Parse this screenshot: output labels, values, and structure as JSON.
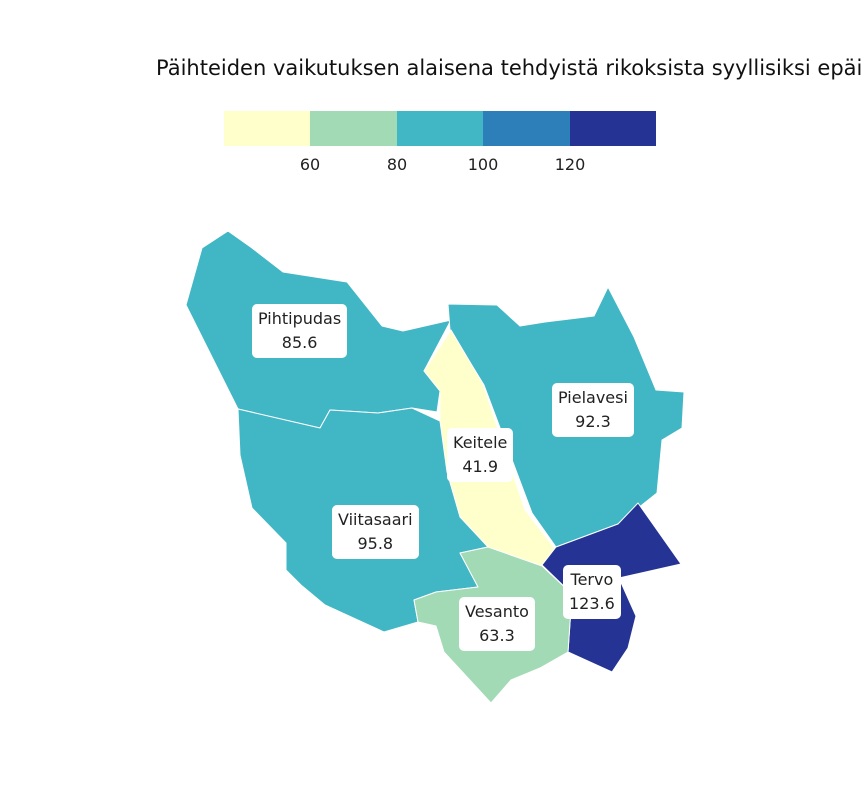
{
  "title": "Päihteiden vaikutuksen alaisena tehdyistä rikoksista syyllisiksi epäilly",
  "legend": {
    "colors": [
      "#ffffcc",
      "#a1dab4",
      "#41b6c4",
      "#2c7fb8",
      "#253494"
    ],
    "breaks": [
      {
        "value": "60"
      },
      {
        "value": "80"
      },
      {
        "value": "100"
      },
      {
        "value": "120"
      }
    ]
  },
  "regions": [
    {
      "name": "Pihtipudas",
      "value": "85.6",
      "color": "#41b6c4"
    },
    {
      "name": "Pielavesi",
      "value": "92.3",
      "color": "#41b6c4"
    },
    {
      "name": "Keitele",
      "value": "41.9",
      "color": "#ffffcc"
    },
    {
      "name": "Viitasaari",
      "value": "95.8",
      "color": "#41b6c4"
    },
    {
      "name": "Tervo",
      "value": "123.6",
      "color": "#253494"
    },
    {
      "name": "Vesanto",
      "value": "63.3",
      "color": "#a1dab4"
    }
  ]
}
